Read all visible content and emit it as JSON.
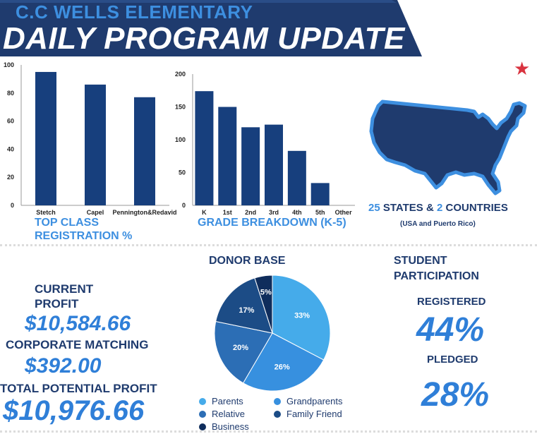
{
  "header": {
    "school": "C.C WELLS ELEMENTARY",
    "title": "DAILY PROGRAM UPDATE"
  },
  "colors": {
    "navy": "#1f3b6e",
    "accent": "#3d8fe0",
    "bar": "#173f7d",
    "banner": "#1f3b6e",
    "star": "#d9333f"
  },
  "chart_data": [
    {
      "type": "bar",
      "title": "TOP CLASS REGISTRATION %",
      "categories": [
        "Stetch",
        "Capel",
        "Pennington&Redavid"
      ],
      "values": [
        95,
        86,
        77
      ],
      "ylim": [
        0,
        100
      ],
      "yticks": [
        0,
        20,
        40,
        60,
        80,
        100
      ],
      "grid": false,
      "xlabel": "",
      "ylabel": ""
    },
    {
      "type": "bar",
      "title": "GRADE BREAKDOWN (K-5)",
      "categories": [
        "K",
        "1st",
        "2nd",
        "3rd",
        "4th",
        "5th",
        "Other"
      ],
      "values": [
        174,
        150,
        119,
        123,
        83,
        34,
        0
      ],
      "ylim": [
        0,
        200
      ],
      "yticks": [
        0,
        50,
        100,
        150,
        200
      ],
      "grid": false,
      "xlabel": "",
      "ylabel": ""
    },
    {
      "type": "pie",
      "title": "DONOR BASE",
      "slices": [
        {
          "name": "Parents",
          "value": 33,
          "label": "33%",
          "color": "#45abea"
        },
        {
          "name": "Grandparents",
          "value": 26,
          "label": "26%",
          "color": "#3790df"
        },
        {
          "name": "Relative",
          "value": 20,
          "label": "20%",
          "color": "#2c6eb5"
        },
        {
          "name": "Family Friend",
          "value": 17,
          "label": "17%",
          "color": "#1c4c86"
        },
        {
          "name": "Business",
          "value": 5,
          "label": "5%",
          "color": "#0f2d5c"
        }
      ],
      "legend_placement": "bottom"
    }
  ],
  "reach": {
    "states_num": "25",
    "states_text": " STATES & ",
    "countries_num": "2",
    "countries_text": " COUNTRIES",
    "note": "(USA and Puerto Rico)"
  },
  "finance": {
    "current_label_1": "CURRENT",
    "current_label_2": "PROFIT",
    "current_value": "$10,584.66",
    "matching_label": "CORPORATE MATCHING",
    "matching_value": "$392.00",
    "total_label": "TOTAL POTENTIAL PROFIT",
    "total_value": "$10,976.66"
  },
  "participation": {
    "title_1": "STUDENT",
    "title_2": "PARTICIPATION",
    "registered_label": "REGISTERED",
    "registered_value": "44%",
    "pledged_label": "PLEDGED",
    "pledged_value": "28%"
  }
}
